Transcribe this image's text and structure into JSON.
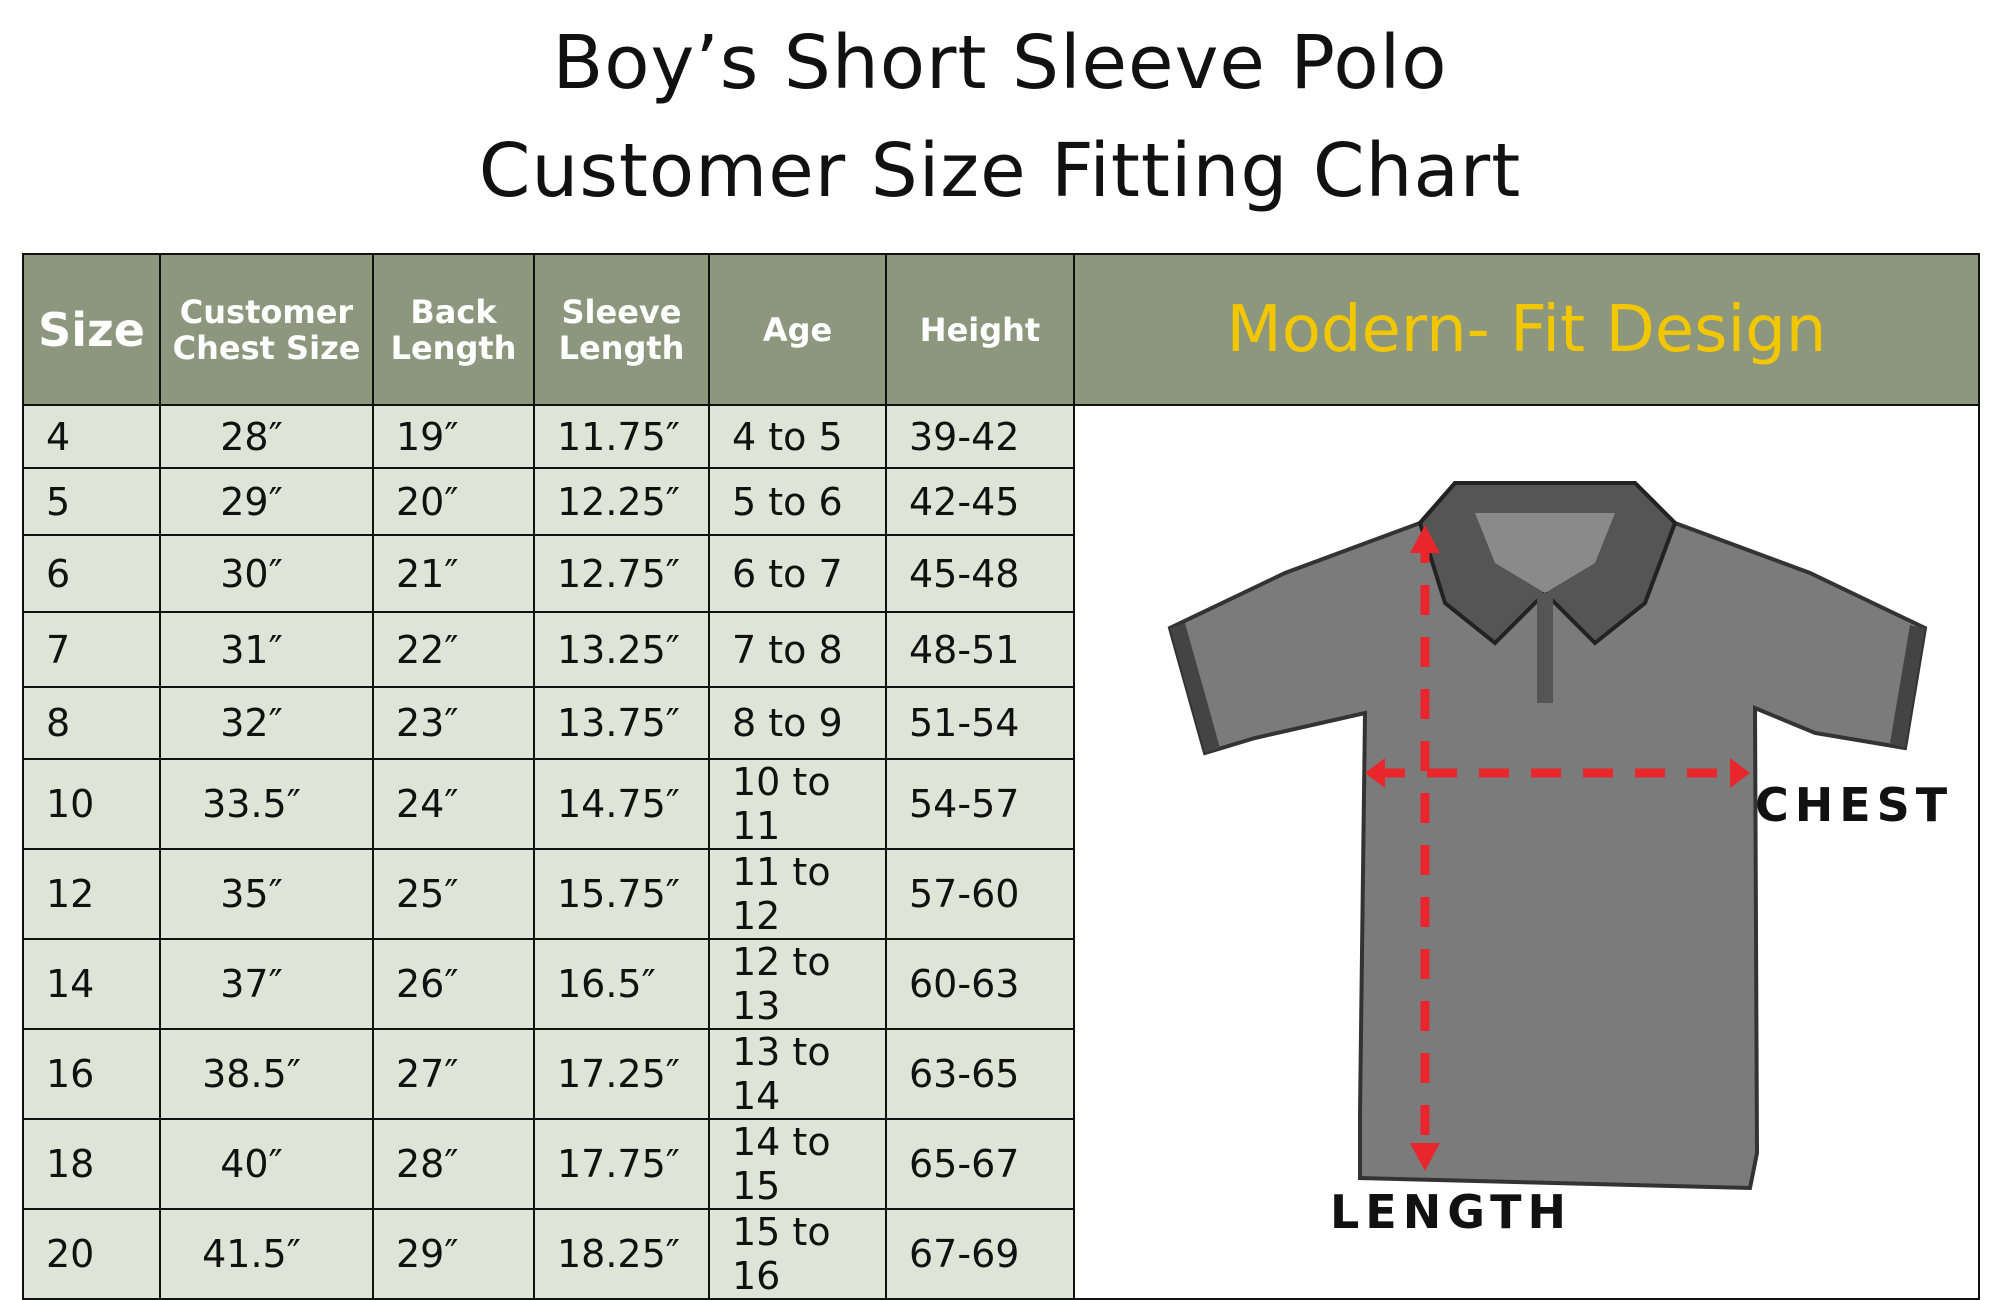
{
  "title": {
    "line1": "Boy’s Short Sleeve Polo",
    "line2": "Customer Size Fitting Chart"
  },
  "headers": [
    "Size",
    "Customer Chest Size",
    "Back Length",
    "Sleeve Length",
    "Age",
    "Height"
  ],
  "banner": "Modern- Fit Design",
  "rows": [
    [
      "4",
      "28″",
      "19″",
      "11.75″",
      "4 to 5",
      "39-42"
    ],
    [
      "5",
      "29″",
      "20″",
      "12.25″",
      "5 to 6",
      "42-45"
    ],
    [
      "6",
      "30″",
      "21″",
      "12.75″",
      "6 to 7",
      "45-48"
    ],
    [
      "7",
      "31″",
      "22″",
      "13.25″",
      "7 to 8",
      "48-51"
    ],
    [
      "8",
      "32″",
      "23″",
      "13.75″",
      "8 to 9",
      "51-54"
    ],
    [
      "10",
      "33.5″",
      "24″",
      "14.75″",
      "10 to 11",
      "54-57"
    ],
    [
      "12",
      "35″",
      "25″",
      "15.75″",
      "11 to 12",
      "57-60"
    ],
    [
      "14",
      "37″",
      "26″",
      "16.5″",
      "12 to 13",
      "60-63"
    ],
    [
      "16",
      "38.5″",
      "27″",
      "17.25″",
      "13 to 14",
      "63-65"
    ],
    [
      "18",
      "40″",
      "28″",
      "17.75″",
      "14 to 15",
      "65-67"
    ],
    [
      "20",
      "41.5″",
      "29″",
      "18.25″",
      "15 to 16",
      "67-69"
    ]
  ],
  "diagram": {
    "chest_label": "CHEST",
    "length_label": "LENGTH",
    "icon": "polo-shirt-measure-diagram"
  },
  "colors": {
    "header": "#8c977e",
    "cell": "#dfe5d6",
    "banner_text": "#f2c700",
    "arrow": "#e8262b"
  }
}
